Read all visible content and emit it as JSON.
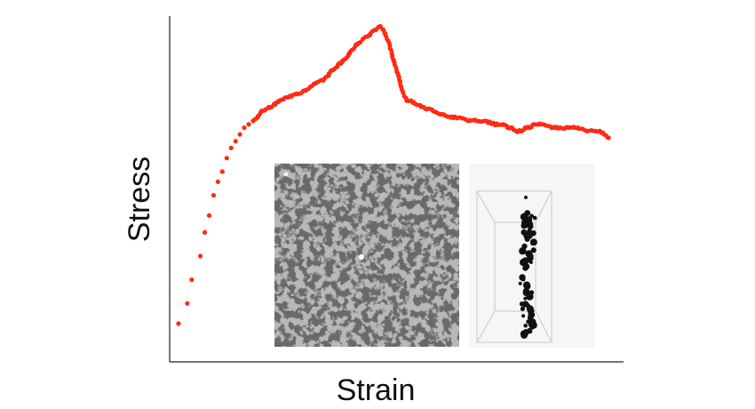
{
  "chart_data": {
    "type": "scatter",
    "title": "",
    "xlabel": "Strain",
    "ylabel": "Stress",
    "xlim": [
      0,
      100
    ],
    "ylim": [
      0,
      100
    ],
    "grid": false,
    "legend": "none",
    "ticks_labeled": false,
    "series": [
      {
        "color": "#ff2a12",
        "x": [
          1,
          3,
          4,
          6,
          7,
          8,
          9,
          10,
          11,
          12,
          13,
          14,
          15,
          16,
          17,
          18,
          19,
          20,
          22,
          24,
          26,
          28,
          30,
          32,
          34,
          36,
          38,
          40,
          42,
          44,
          46,
          47,
          48,
          49,
          50,
          51,
          52,
          53,
          54,
          55,
          57,
          59,
          61,
          63,
          65,
          67,
          69,
          71,
          73,
          75,
          76,
          77,
          78,
          79,
          80,
          81,
          82,
          84,
          86,
          88,
          90,
          92,
          94,
          96,
          97,
          98,
          99
        ],
        "y": [
          10,
          16,
          23,
          30,
          37,
          42,
          48,
          52,
          55,
          59,
          62,
          64,
          66,
          68,
          69,
          70,
          71,
          73,
          74,
          76,
          77,
          78,
          79,
          81,
          82,
          85,
          87,
          90,
          93,
          95,
          97,
          98,
          96,
          93,
          88,
          84,
          79,
          76,
          76,
          75,
          74,
          73,
          72,
          71,
          71,
          70,
          70,
          70,
          69,
          69,
          68,
          68,
          67,
          67,
          68,
          68,
          69,
          69,
          68,
          68,
          68,
          68,
          67,
          67,
          67,
          66,
          65
        ]
      }
    ],
    "insets": [
      {
        "kind": "micrograph"
      },
      {
        "kind": "3d-reconstruction"
      }
    ]
  }
}
